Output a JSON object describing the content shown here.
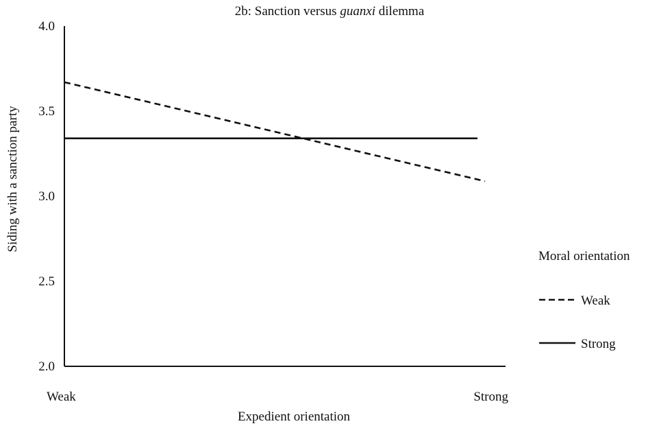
{
  "chart_data": {
    "type": "line",
    "title_prefix": "2b: Sanction versus ",
    "title_italic": "guanxi",
    "title_suffix": " dilemma",
    "xlabel": "Expedient orientation",
    "ylabel": "Siding with a sanction party",
    "categories": [
      "Weak",
      "Strong"
    ],
    "ylim": [
      2.0,
      4.0
    ],
    "yticks": [
      "2.0",
      "2.5",
      "3.0",
      "3.5",
      "4.0"
    ],
    "grid": false,
    "legend": {
      "title": "Moral orientation",
      "placement": "right"
    },
    "series": [
      {
        "name": "Weak",
        "style": "dashed",
        "color": "#111111",
        "values": [
          3.67,
          3.09
        ]
      },
      {
        "name": "Strong",
        "style": "solid",
        "color": "#111111",
        "values": [
          3.34,
          3.34
        ]
      }
    ]
  }
}
